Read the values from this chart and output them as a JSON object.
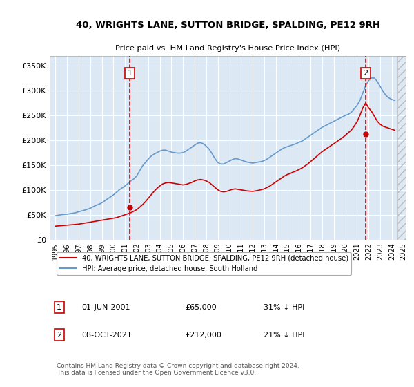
{
  "title": "40, WRIGHTS LANE, SUTTON BRIDGE, SPALDING, PE12 9RH",
  "subtitle": "Price paid vs. HM Land Registry's House Price Index (HPI)",
  "legend_line1": "40, WRIGHTS LANE, SUTTON BRIDGE, SPALDING, PE12 9RH (detached house)",
  "legend_line2": "HPI: Average price, detached house, South Holland",
  "transaction1_label": "1",
  "transaction1_date": "01-JUN-2001",
  "transaction1_price": "£65,000",
  "transaction1_hpi": "31% ↓ HPI",
  "transaction2_label": "2",
  "transaction2_date": "08-OCT-2021",
  "transaction2_price": "£212,000",
  "transaction2_hpi": "21% ↓ HPI",
  "footer": "Contains HM Land Registry data © Crown copyright and database right 2024.\nThis data is licensed under the Open Government Licence v3.0.",
  "red_color": "#cc0000",
  "blue_color": "#6699cc",
  "plot_bg": "#dce9f5",
  "ylim": [
    0,
    370000
  ],
  "yticks": [
    0,
    50000,
    100000,
    150000,
    200000,
    250000,
    300000,
    350000
  ],
  "ytick_labels": [
    "£0",
    "£50K",
    "£100K",
    "£150K",
    "£200K",
    "£250K",
    "£300K",
    "£350K"
  ],
  "hpi_years": [
    1995,
    1995.25,
    1995.5,
    1995.75,
    1996,
    1996.25,
    1996.5,
    1996.75,
    1997,
    1997.25,
    1997.5,
    1997.75,
    1998,
    1998.25,
    1998.5,
    1998.75,
    1999,
    1999.25,
    1999.5,
    1999.75,
    2000,
    2000.25,
    2000.5,
    2000.75,
    2001,
    2001.25,
    2001.5,
    2001.75,
    2002,
    2002.25,
    2002.5,
    2002.75,
    2003,
    2003.25,
    2003.5,
    2003.75,
    2004,
    2004.25,
    2004.5,
    2004.75,
    2005,
    2005.25,
    2005.5,
    2005.75,
    2006,
    2006.25,
    2006.5,
    2006.75,
    2007,
    2007.25,
    2007.5,
    2007.75,
    2008,
    2008.25,
    2008.5,
    2008.75,
    2009,
    2009.25,
    2009.5,
    2009.75,
    2010,
    2010.25,
    2010.5,
    2010.75,
    2011,
    2011.25,
    2011.5,
    2011.75,
    2012,
    2012.25,
    2012.5,
    2012.75,
    2013,
    2013.25,
    2013.5,
    2013.75,
    2014,
    2014.25,
    2014.5,
    2014.75,
    2015,
    2015.25,
    2015.5,
    2015.75,
    2016,
    2016.25,
    2016.5,
    2016.75,
    2017,
    2017.25,
    2017.5,
    2017.75,
    2018,
    2018.25,
    2018.5,
    2018.75,
    2019,
    2019.25,
    2019.5,
    2019.75,
    2020,
    2020.25,
    2020.5,
    2020.75,
    2021,
    2021.25,
    2021.5,
    2021.75,
    2022,
    2022.25,
    2022.5,
    2022.75,
    2023,
    2023.25,
    2023.5,
    2023.75,
    2024,
    2024.25
  ],
  "hpi_values": [
    48000,
    49000,
    50000,
    50500,
    51000,
    52000,
    53000,
    54000,
    56000,
    57500,
    59000,
    61000,
    63000,
    66000,
    69000,
    71000,
    74000,
    78000,
    82000,
    86000,
    90000,
    95000,
    100000,
    104000,
    108000,
    113000,
    118000,
    122000,
    128000,
    138000,
    148000,
    155000,
    162000,
    168000,
    172000,
    175000,
    178000,
    180000,
    180000,
    178000,
    176000,
    175000,
    174000,
    174000,
    175000,
    178000,
    182000,
    186000,
    190000,
    194000,
    195000,
    193000,
    188000,
    182000,
    173000,
    163000,
    155000,
    152000,
    152000,
    155000,
    158000,
    161000,
    163000,
    162000,
    160000,
    158000,
    156000,
    155000,
    154000,
    155000,
    156000,
    157000,
    159000,
    162000,
    166000,
    170000,
    174000,
    178000,
    182000,
    185000,
    187000,
    189000,
    191000,
    193000,
    196000,
    198000,
    202000,
    206000,
    210000,
    214000,
    218000,
    222000,
    226000,
    229000,
    232000,
    235000,
    238000,
    241000,
    244000,
    247000,
    250000,
    252000,
    256000,
    263000,
    270000,
    280000,
    295000,
    310000,
    320000,
    325000,
    325000,
    318000,
    308000,
    298000,
    290000,
    285000,
    282000,
    280000
  ],
  "red_years": [
    1995,
    1995.25,
    1995.5,
    1995.75,
    1996,
    1996.25,
    1996.5,
    1996.75,
    1997,
    1997.25,
    1997.5,
    1997.75,
    1998,
    1998.25,
    1998.5,
    1998.75,
    1999,
    1999.25,
    1999.5,
    1999.75,
    2000,
    2000.25,
    2000.5,
    2000.75,
    2001,
    2001.25,
    2001.5,
    2001.75,
    2002,
    2002.25,
    2002.5,
    2002.75,
    2003,
    2003.25,
    2003.5,
    2003.75,
    2004,
    2004.25,
    2004.5,
    2004.75,
    2005,
    2005.25,
    2005.5,
    2005.75,
    2006,
    2006.25,
    2006.5,
    2006.75,
    2007,
    2007.25,
    2007.5,
    2007.75,
    2008,
    2008.25,
    2008.5,
    2008.75,
    2009,
    2009.25,
    2009.5,
    2009.75,
    2010,
    2010.25,
    2010.5,
    2010.75,
    2011,
    2011.25,
    2011.5,
    2011.75,
    2012,
    2012.25,
    2012.5,
    2012.75,
    2013,
    2013.25,
    2013.5,
    2013.75,
    2014,
    2014.25,
    2014.5,
    2014.75,
    2015,
    2015.25,
    2015.5,
    2015.75,
    2016,
    2016.25,
    2016.5,
    2016.75,
    2017,
    2017.25,
    2017.5,
    2017.75,
    2018,
    2018.25,
    2018.5,
    2018.75,
    2019,
    2019.25,
    2019.5,
    2019.75,
    2020,
    2020.25,
    2020.5,
    2020.75,
    2021,
    2021.25,
    2021.5,
    2021.75,
    2022,
    2022.25,
    2022.5,
    2022.75,
    2023,
    2023.25,
    2023.5,
    2023.75,
    2024,
    2024.25
  ],
  "red_values": [
    27000,
    27500,
    28000,
    28500,
    29000,
    29500,
    30000,
    30500,
    31000,
    32000,
    33000,
    34000,
    35000,
    36000,
    37000,
    38000,
    39000,
    40000,
    41000,
    42000,
    43000,
    44000,
    46000,
    48000,
    50000,
    52000,
    54000,
    57000,
    60000,
    65000,
    70000,
    76000,
    83000,
    90000,
    97000,
    103000,
    108000,
    112000,
    114000,
    115000,
    114000,
    113000,
    112000,
    111000,
    110000,
    111000,
    113000,
    115000,
    118000,
    120000,
    121000,
    120000,
    118000,
    115000,
    110000,
    105000,
    100000,
    97000,
    96000,
    97000,
    99000,
    101000,
    102000,
    101000,
    100000,
    99000,
    98000,
    97500,
    97000,
    98000,
    99000,
    100500,
    102000,
    105000,
    108000,
    112000,
    116000,
    120000,
    124000,
    128000,
    131000,
    133000,
    136000,
    138000,
    141000,
    144000,
    148000,
    152000,
    157000,
    162000,
    167000,
    172000,
    177000,
    181000,
    185000,
    189000,
    193000,
    197000,
    201000,
    205000,
    210000,
    215000,
    220000,
    228000,
    237000,
    250000,
    265000,
    275000,
    265000,
    258000,
    248000,
    238000,
    232000,
    228000,
    226000,
    224000,
    222000,
    220000
  ],
  "transaction1_year": 2001.417,
  "transaction1_value": 65000,
  "transaction2_year": 2021.75,
  "transaction2_value": 212000,
  "xlim": [
    1994.5,
    2025.2
  ],
  "xticks": [
    1995,
    1996,
    1997,
    1998,
    1999,
    2000,
    2001,
    2002,
    2003,
    2004,
    2005,
    2006,
    2007,
    2008,
    2009,
    2010,
    2011,
    2012,
    2013,
    2014,
    2015,
    2016,
    2017,
    2018,
    2019,
    2020,
    2021,
    2022,
    2023,
    2024,
    2025
  ]
}
